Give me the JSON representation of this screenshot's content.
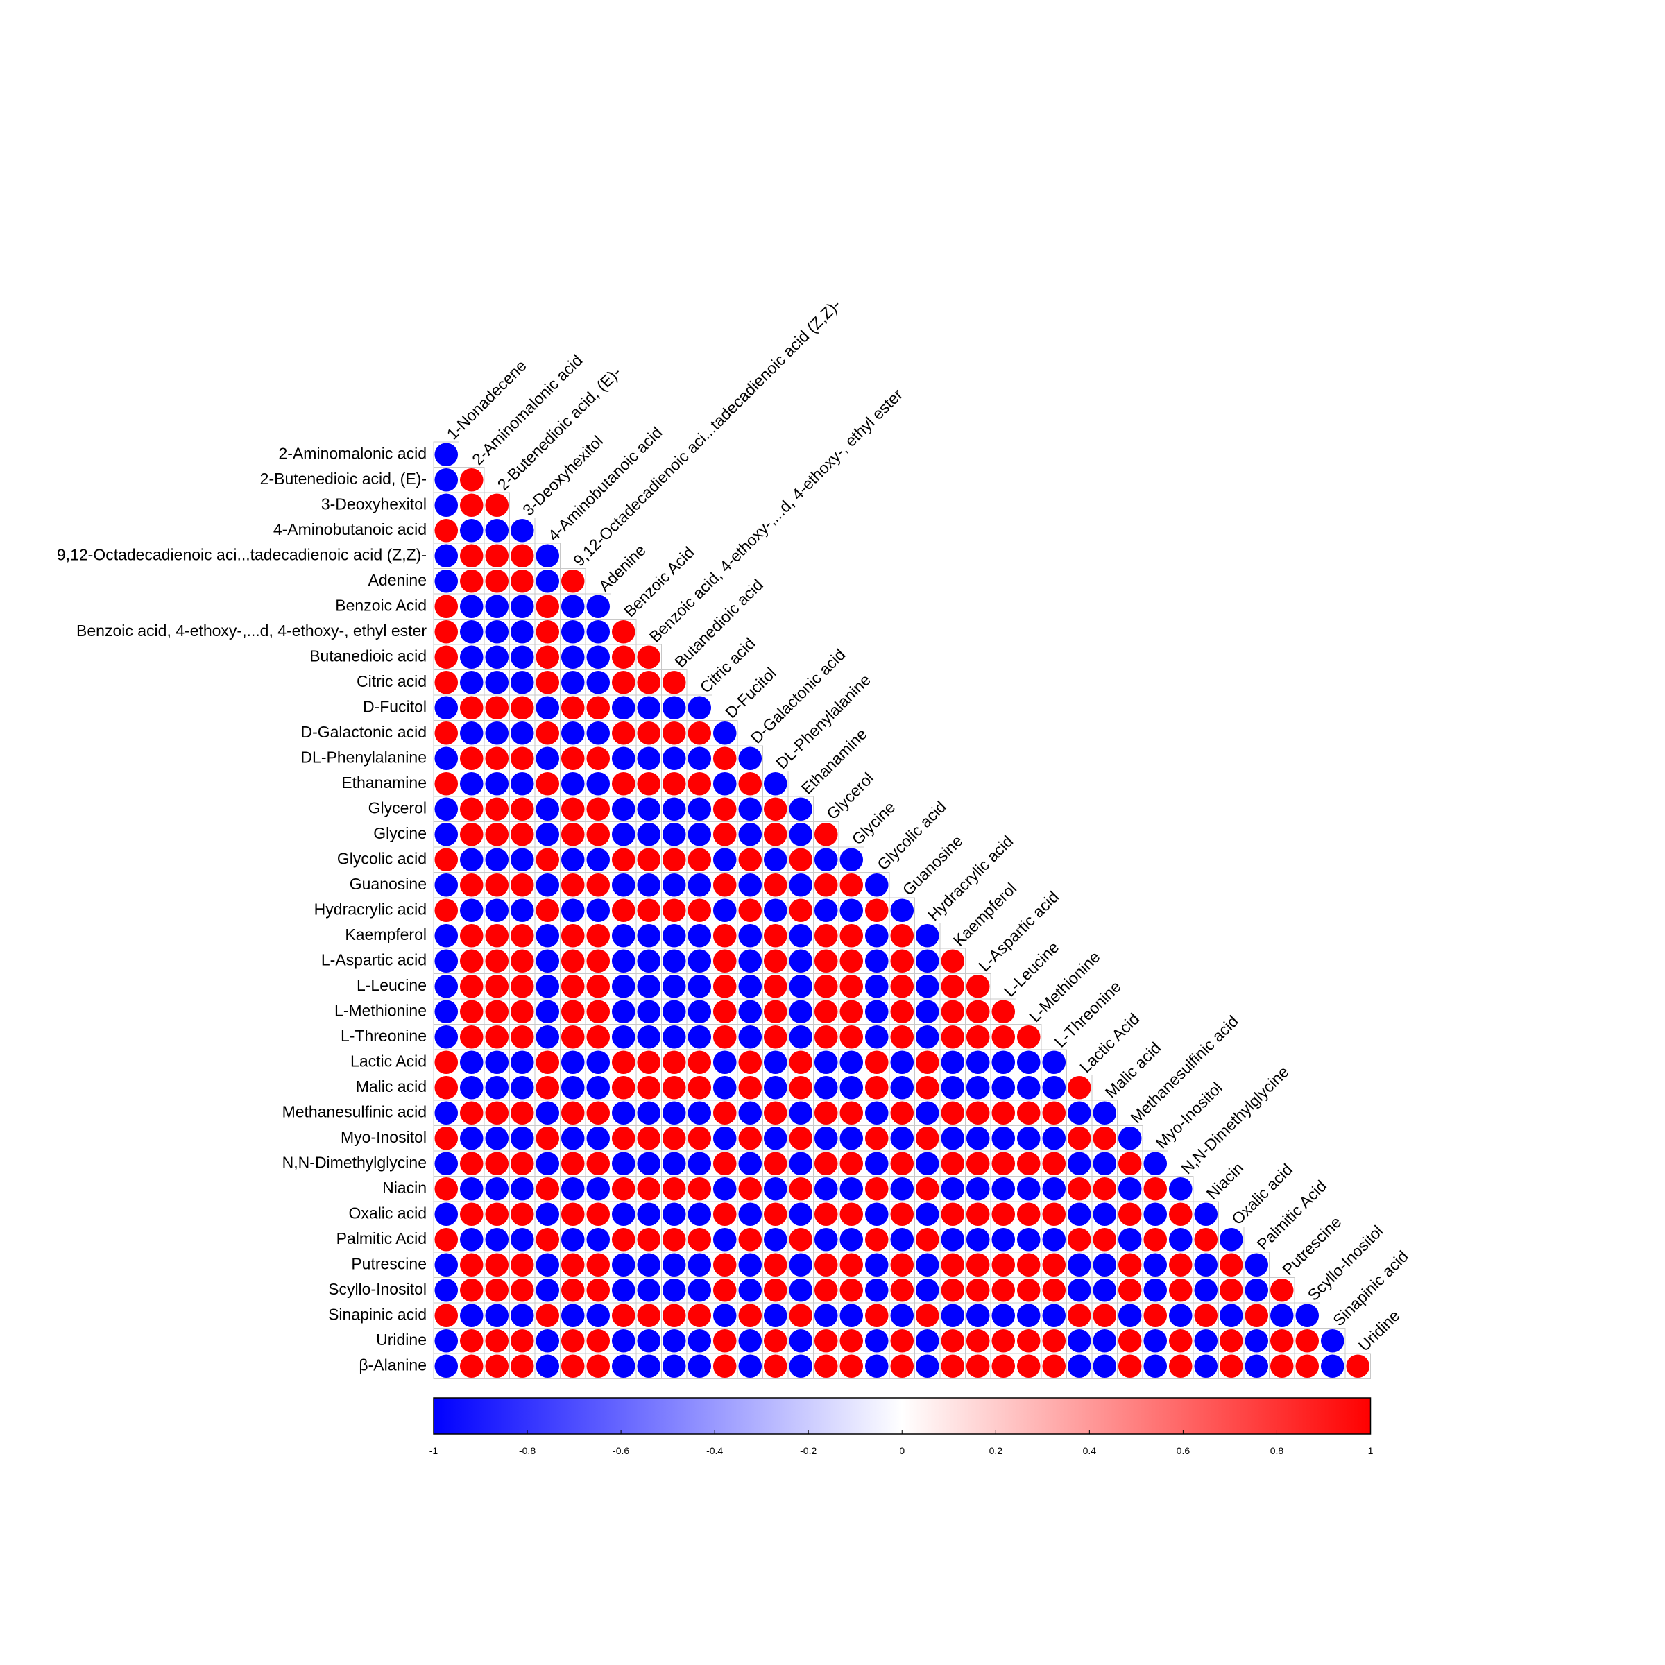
{
  "chart_data": {
    "type": "corrplot",
    "rows": [
      "2-Aminomalonic acid",
      "2-Butenedioic acid, (E)-",
      "3-Deoxyhexitol",
      "4-Aminobutanoic acid",
      "9,12-Octadecadienoic aci...tadecadienoic acid (Z,Z)-",
      "Adenine",
      "Benzoic Acid",
      "Benzoic acid, 4-ethoxy-,...d, 4-ethoxy-, ethyl ester",
      "Butanedioic acid",
      "Citric acid",
      "D-Fucitol",
      "D-Galactonic acid",
      "DL-Phenylalanine",
      "Ethanamine",
      "Glycerol",
      "Glycine",
      "Glycolic acid",
      "Guanosine",
      "Hydracrylic acid",
      "Kaempferol",
      "L-Aspartic acid",
      "L-Leucine",
      "L-Methionine",
      "L-Threonine",
      "Lactic Acid",
      "Malic acid",
      "Methanesulfinic acid",
      "Myo-Inositol",
      "N,N-Dimethylglycine",
      "Niacin",
      "Oxalic acid",
      "Palmitic Acid",
      "Putrescine",
      "Scyllo-Inositol",
      "Sinapinic acid",
      "Uridine",
      "β-Alanine"
    ],
    "columns": [
      "1-Nonadecene",
      "2-Aminomalonic acid",
      "2-Butenedioic acid, (E)-",
      "3-Deoxyhexitol",
      "4-Aminobutanoic acid",
      "9,12-Octadecadienoic aci...tadecadienoic acid (Z,Z)-",
      "Adenine",
      "Benzoic Acid",
      "Benzoic acid, 4-ethoxy-,...d, 4-ethoxy-, ethyl ester",
      "Butanedioic acid",
      "Citric acid",
      "D-Fucitol",
      "D-Galactonic acid",
      "DL-Phenylalanine",
      "Ethanamine",
      "Glycerol",
      "Glycine",
      "Glycolic acid",
      "Guanosine",
      "Hydracrylic acid",
      "Kaempferol",
      "L-Aspartic acid",
      "L-Leucine",
      "L-Methionine",
      "L-Threonine",
      "Lactic Acid",
      "Malic acid",
      "Methanesulfinic acid",
      "Myo-Inositol",
      "N,N-Dimethylglycine",
      "Niacin",
      "Oxalic acid",
      "Palmitic Acid",
      "Putrescine",
      "Scyllo-Inositol",
      "Sinapinic acid",
      "Uridine"
    ],
    "values": [
      [
        -1
      ],
      [
        -1,
        1
      ],
      [
        -1,
        1,
        1
      ],
      [
        1,
        -1,
        -1,
        -1
      ],
      [
        -1,
        1,
        1,
        1,
        -1
      ],
      [
        -1,
        1,
        1,
        1,
        -1,
        1
      ],
      [
        1,
        -1,
        -1,
        -1,
        1,
        -1,
        -1
      ],
      [
        1,
        -1,
        -1,
        -1,
        1,
        -1,
        -1,
        1
      ],
      [
        1,
        -1,
        -1,
        -1,
        1,
        -1,
        -1,
        1,
        1
      ],
      [
        1,
        -1,
        -1,
        -1,
        1,
        -1,
        -1,
        1,
        1,
        1
      ],
      [
        -1,
        1,
        1,
        1,
        -1,
        1,
        1,
        -1,
        -1,
        -1,
        -1
      ],
      [
        1,
        -1,
        -1,
        -1,
        1,
        -1,
        -1,
        1,
        1,
        1,
        1,
        -1
      ],
      [
        -1,
        1,
        1,
        1,
        -1,
        1,
        1,
        -1,
        -1,
        -1,
        -1,
        1,
        -1
      ],
      [
        1,
        -1,
        -1,
        -1,
        1,
        -1,
        -1,
        1,
        1,
        1,
        1,
        -1,
        1,
        -1
      ],
      [
        -1,
        1,
        1,
        1,
        -1,
        1,
        1,
        -1,
        -1,
        -1,
        -1,
        1,
        -1,
        1,
        -1
      ],
      [
        -1,
        1,
        1,
        1,
        -1,
        1,
        1,
        -1,
        -1,
        -1,
        -1,
        1,
        -1,
        1,
        -1,
        1
      ],
      [
        1,
        -1,
        -1,
        -1,
        1,
        -1,
        -1,
        1,
        1,
        1,
        1,
        -1,
        1,
        -1,
        1,
        -1,
        -1
      ],
      [
        -1,
        1,
        1,
        1,
        -1,
        1,
        1,
        -1,
        -1,
        -1,
        -1,
        1,
        -1,
        1,
        -1,
        1,
        1,
        -1
      ],
      [
        1,
        -1,
        -1,
        -1,
        1,
        -1,
        -1,
        1,
        1,
        1,
        1,
        -1,
        1,
        -1,
        1,
        -1,
        -1,
        1,
        -1
      ],
      [
        -1,
        1,
        1,
        1,
        -1,
        1,
        1,
        -1,
        -1,
        -1,
        -1,
        1,
        -1,
        1,
        -1,
        1,
        1,
        -1,
        1,
        -1
      ],
      [
        -1,
        1,
        1,
        1,
        -1,
        1,
        1,
        -1,
        -1,
        -1,
        -1,
        1,
        -1,
        1,
        -1,
        1,
        1,
        -1,
        1,
        -1,
        1
      ],
      [
        -1,
        1,
        1,
        1,
        -1,
        1,
        1,
        -1,
        -1,
        -1,
        -1,
        1,
        -1,
        1,
        -1,
        1,
        1,
        -1,
        1,
        -1,
        1,
        1
      ],
      [
        -1,
        1,
        1,
        1,
        -1,
        1,
        1,
        -1,
        -1,
        -1,
        -1,
        1,
        -1,
        1,
        -1,
        1,
        1,
        -1,
        1,
        -1,
        1,
        1,
        1
      ],
      [
        -1,
        1,
        1,
        1,
        -1,
        1,
        1,
        -1,
        -1,
        -1,
        -1,
        1,
        -1,
        1,
        -1,
        1,
        1,
        -1,
        1,
        -1,
        1,
        1,
        1,
        1
      ],
      [
        1,
        -1,
        -1,
        -1,
        1,
        -1,
        -1,
        1,
        1,
        1,
        1,
        -1,
        1,
        -1,
        1,
        -1,
        -1,
        1,
        -1,
        1,
        -1,
        -1,
        -1,
        -1,
        -1
      ],
      [
        1,
        -1,
        -1,
        -1,
        1,
        -1,
        -1,
        1,
        1,
        1,
        1,
        -1,
        1,
        -1,
        1,
        -1,
        -1,
        1,
        -1,
        1,
        -1,
        -1,
        -1,
        -1,
        -1,
        1
      ],
      [
        -1,
        1,
        1,
        1,
        -1,
        1,
        1,
        -1,
        -1,
        -1,
        -1,
        1,
        -1,
        1,
        -1,
        1,
        1,
        -1,
        1,
        -1,
        1,
        1,
        1,
        1,
        1,
        -1,
        -1
      ],
      [
        1,
        -1,
        -1,
        -1,
        1,
        -1,
        -1,
        1,
        1,
        1,
        1,
        -1,
        1,
        -1,
        1,
        -1,
        -1,
        1,
        -1,
        1,
        -1,
        -1,
        -1,
        -1,
        -1,
        1,
        1,
        -1
      ],
      [
        -1,
        1,
        1,
        1,
        -1,
        1,
        1,
        -1,
        -1,
        -1,
        -1,
        1,
        -1,
        1,
        -1,
        1,
        1,
        -1,
        1,
        -1,
        1,
        1,
        1,
        1,
        1,
        -1,
        -1,
        1,
        -1
      ],
      [
        1,
        -1,
        -1,
        -1,
        1,
        -1,
        -1,
        1,
        1,
        1,
        1,
        -1,
        1,
        -1,
        1,
        -1,
        -1,
        1,
        -1,
        1,
        -1,
        -1,
        -1,
        -1,
        -1,
        1,
        1,
        -1,
        1,
        -1
      ],
      [
        -1,
        1,
        1,
        1,
        -1,
        1,
        1,
        -1,
        -1,
        -1,
        -1,
        1,
        -1,
        1,
        -1,
        1,
        1,
        -1,
        1,
        -1,
        1,
        1,
        1,
        1,
        1,
        -1,
        -1,
        1,
        -1,
        1,
        -1
      ],
      [
        1,
        -1,
        -1,
        -1,
        1,
        -1,
        -1,
        1,
        1,
        1,
        1,
        -1,
        1,
        -1,
        1,
        -1,
        -1,
        1,
        -1,
        1,
        -1,
        -1,
        -1,
        -1,
        -1,
        1,
        1,
        -1,
        1,
        -1,
        1,
        -1
      ],
      [
        -1,
        1,
        1,
        1,
        -1,
        1,
        1,
        -1,
        -1,
        -1,
        -1,
        1,
        -1,
        1,
        -1,
        1,
        1,
        -1,
        1,
        -1,
        1,
        1,
        1,
        1,
        1,
        -1,
        -1,
        1,
        -1,
        1,
        -1,
        1,
        -1
      ],
      [
        -1,
        1,
        1,
        1,
        -1,
        1,
        1,
        -1,
        -1,
        -1,
        -1,
        1,
        -1,
        1,
        -1,
        1,
        1,
        -1,
        1,
        -1,
        1,
        1,
        1,
        1,
        1,
        -1,
        -1,
        1,
        -1,
        1,
        -1,
        1,
        -1,
        1
      ],
      [
        1,
        -1,
        -1,
        -1,
        1,
        -1,
        -1,
        1,
        1,
        1,
        1,
        -1,
        1,
        -1,
        1,
        -1,
        -1,
        1,
        -1,
        1,
        -1,
        -1,
        -1,
        -1,
        -1,
        1,
        1,
        -1,
        1,
        -1,
        1,
        -1,
        1,
        -1,
        -1
      ],
      [
        -1,
        1,
        1,
        1,
        -1,
        1,
        1,
        -1,
        -1,
        -1,
        -1,
        1,
        -1,
        1,
        -1,
        1,
        1,
        -1,
        1,
        -1,
        1,
        1,
        1,
        1,
        1,
        -1,
        -1,
        1,
        -1,
        1,
        -1,
        1,
        -1,
        1,
        1,
        -1
      ],
      [
        -1,
        1,
        1,
        1,
        -1,
        1,
        1,
        -1,
        -1,
        -1,
        -1,
        1,
        -1,
        1,
        -1,
        1,
        1,
        -1,
        1,
        -1,
        1,
        1,
        1,
        1,
        1,
        -1,
        -1,
        1,
        -1,
        1,
        -1,
        1,
        -1,
        1,
        1,
        -1,
        1
      ]
    ],
    "clim": [
      -1,
      1
    ],
    "colorbar_ticks": [
      -1,
      -0.8,
      -0.6,
      -0.4,
      -0.2,
      0,
      0.2,
      0.4,
      0.6,
      0.8,
      1
    ],
    "colors": {
      "low": "#0000ff",
      "mid": "#ffffff",
      "high": "#ff0000"
    },
    "grid": true
  }
}
